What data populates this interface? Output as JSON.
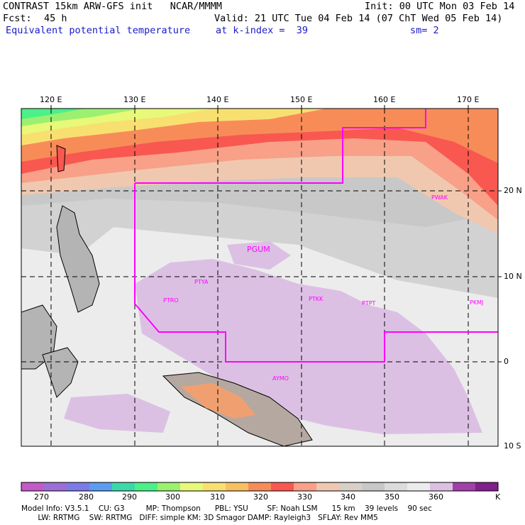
{
  "header": {
    "line1_left": "CONTRAST 15km ARW-GFS init   NCAR/MMMM",
    "line1_right": "Init: 00 UTC Mon 03 Feb 14",
    "fcst_label": "Fcst:",
    "fcst_value": "45 h",
    "valid": "Valid: 21 UTC Tue 04 Feb 14 (07 ChT Wed 05 Feb 14)",
    "field": "Equivalent potential temperature",
    "level": "at k-index =  39",
    "smoothing": "sm= 2"
  },
  "map": {
    "lon_labels": [
      "120 E",
      "130 E",
      "140 E",
      "150 E",
      "160 E",
      "170 E"
    ],
    "lat_labels": [
      "20 N",
      "10 N",
      "0",
      "10 S"
    ],
    "stations": [
      "PGUM",
      "PTYA",
      "PTRO",
      "PTKK",
      "PTPT",
      "PKMJ",
      "PWAK",
      "AYMO"
    ],
    "overlay_color": "#ff00ff"
  },
  "colorbar": {
    "labels": [
      "270",
      "280",
      "290",
      "300",
      "310",
      "320",
      "330",
      "340",
      "350",
      "360"
    ],
    "unit": "K",
    "colors": [
      "#c45ac8",
      "#9b6fd6",
      "#7b7be8",
      "#5a9cf0",
      "#3cd8a8",
      "#4cf088",
      "#9cf070",
      "#e8f878",
      "#f8e070",
      "#f8c060",
      "#f88c58",
      "#f85850",
      "#f8a088",
      "#f0c8b0",
      "#d8d0c8",
      "#c8c8c8",
      "#dcdcdc",
      "#ececec",
      "#dcc0e4",
      "#a040a8",
      "#80208c"
    ]
  },
  "footer": {
    "line1": "Model Info: V3.5.1    CU: G3         MP: Thompson      PBL: YSU        SF: Noah LSM      15 km    39 levels    90 sec",
    "line2": "       LW: RRTMG    SW: RRTMG   DIFF: simple KM: 3D Smagor DAMP: Rayleigh3   SFLAY: Rev MM5"
  }
}
